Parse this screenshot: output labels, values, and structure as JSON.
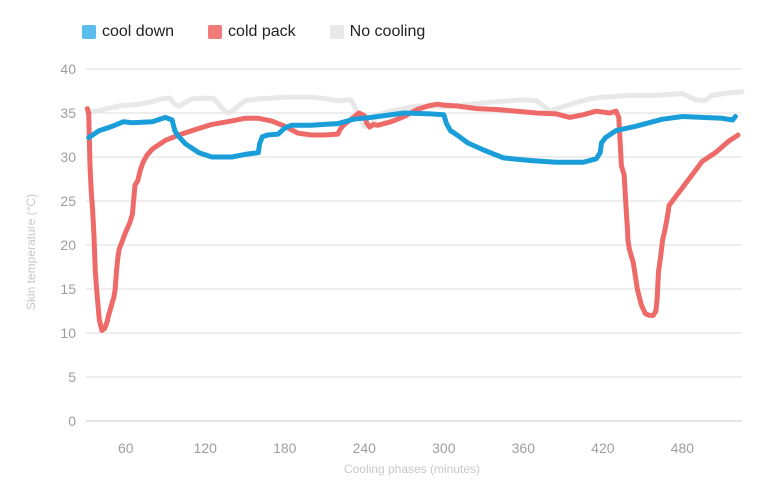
{
  "chart_data": {
    "type": "line",
    "xlabel": "Cooling phases (minutes)",
    "ylabel": "Skin temperature (°C)",
    "xlim": [
      30,
      525
    ],
    "ylim": [
      0,
      40
    ],
    "xticks": [
      60,
      120,
      180,
      240,
      300,
      360,
      420,
      480
    ],
    "yticks": [
      0,
      5,
      10,
      15,
      20,
      25,
      30,
      35,
      40
    ],
    "grid": "horizontal",
    "legend_position": "top-left",
    "series": [
      {
        "name": "cool down",
        "color": "#1a9ed9",
        "x": [
          32,
          40,
          50,
          58,
          65,
          80,
          90,
          95,
          97,
          99,
          105,
          115,
          125,
          140,
          150,
          160,
          161,
          163,
          167,
          175,
          180,
          185,
          200,
          210,
          220,
          232,
          245,
          270,
          290,
          300,
          302,
          305,
          310,
          318,
          330,
          345,
          365,
          385,
          405,
          415,
          418,
          419,
          422,
          430,
          445,
          465,
          480,
          495,
          510,
          518,
          520
        ],
        "y": [
          32.2,
          33,
          33.5,
          34,
          33.9,
          34.0,
          34.5,
          34.2,
          33.0,
          32.5,
          31.5,
          30.5,
          30.0,
          30.0,
          30.3,
          30.5,
          31.5,
          32.3,
          32.5,
          32.6,
          33.3,
          33.6,
          33.6,
          33.7,
          33.8,
          34.3,
          34.5,
          35.0,
          34.9,
          34.8,
          33.8,
          33.0,
          32.5,
          31.6,
          30.8,
          29.9,
          29.6,
          29.4,
          29.4,
          29.8,
          30.5,
          31.6,
          32.2,
          33.0,
          33.5,
          34.3,
          34.6,
          34.5,
          34.4,
          34.2,
          34.6
        ]
      },
      {
        "name": "cold pack",
        "color": "#ee6a68",
        "x": [
          31,
          32,
          33,
          34,
          35,
          36,
          37,
          38,
          40,
          42,
          44,
          46,
          47,
          48,
          49,
          50,
          51,
          52,
          53,
          54,
          55,
          57,
          60,
          63,
          65,
          67,
          69,
          71,
          73,
          76,
          80,
          90,
          100,
          110,
          125,
          140,
          150,
          160,
          170,
          180,
          190,
          200,
          210,
          220,
          222,
          225,
          230,
          236,
          240,
          242,
          244,
          247,
          250,
          260,
          270,
          280,
          288,
          295,
          300,
          310,
          325,
          340,
          355,
          370,
          385,
          395,
          405,
          415,
          425,
          430,
          432,
          434,
          436,
          438,
          438.5,
          439,
          440,
          443,
          446,
          449,
          452,
          455,
          458,
          460,
          461,
          462,
          463,
          464,
          465,
          467,
          469,
          470,
          475,
          485,
          495,
          505,
          515,
          520,
          522
        ],
        "y": [
          35.5,
          35.0,
          29.0,
          26.0,
          24.0,
          21.0,
          17.0,
          15.0,
          11.5,
          10.3,
          10.5,
          11.3,
          12.0,
          12.5,
          13.0,
          13.6,
          14.0,
          15.0,
          17.0,
          18.5,
          19.5,
          20.3,
          21.5,
          22.5,
          23.5,
          26.8,
          27.3,
          28.5,
          29.4,
          30.2,
          30.9,
          31.9,
          32.5,
          33.0,
          33.7,
          34.1,
          34.4,
          34.4,
          34.1,
          33.5,
          32.7,
          32.5,
          32.5,
          32.6,
          33.2,
          33.7,
          34.3,
          35.0,
          34.7,
          33.8,
          33.4,
          33.7,
          33.6,
          34.0,
          34.6,
          35.4,
          35.8,
          36.0,
          35.9,
          35.8,
          35.5,
          35.4,
          35.2,
          35.0,
          34.9,
          34.5,
          34.8,
          35.2,
          35.0,
          35.2,
          34.5,
          29.0,
          28.0,
          23.0,
          22.0,
          20.5,
          19.5,
          18.0,
          15.0,
          13.2,
          12.2,
          12.0,
          12.0,
          12.5,
          14.0,
          17.0,
          18.0,
          19.2,
          20.5,
          21.8,
          23.5,
          24.5,
          25.5,
          27.5,
          29.5,
          30.5,
          31.8,
          32.3,
          32.5
        ]
      },
      {
        "name": "No cooling",
        "color": "#e8e8e8",
        "x": [
          31,
          40,
          55,
          70,
          80,
          87,
          93,
          97,
          100,
          110,
          122,
          127,
          130,
          133,
          137,
          140,
          145,
          150,
          160,
          180,
          200,
          212,
          220,
          230,
          240,
          245,
          250,
          260,
          270,
          280,
          290,
          300,
          320,
          340,
          360,
          370,
          380,
          385,
          390,
          400,
          410,
          420,
          440,
          460,
          480,
          490,
          497,
          502,
          507,
          515,
          525
        ],
        "y": [
          35.0,
          35.3,
          35.8,
          36.0,
          36.3,
          36.6,
          36.7,
          36.0,
          35.8,
          36.6,
          36.7,
          36.6,
          36.0,
          35.5,
          35.0,
          35.2,
          35.8,
          36.4,
          36.6,
          36.8,
          36.8,
          36.6,
          36.4,
          36.5,
          33.5,
          33.6,
          34.8,
          35.2,
          35.5,
          35.8,
          35.8,
          35.7,
          36.0,
          36.3,
          36.5,
          36.4,
          35.2,
          35.5,
          35.7,
          36.2,
          36.6,
          36.8,
          37.0,
          37.0,
          37.2,
          36.5,
          36.4,
          37.0,
          37.1,
          37.3,
          37.4
        ]
      }
    ]
  }
}
